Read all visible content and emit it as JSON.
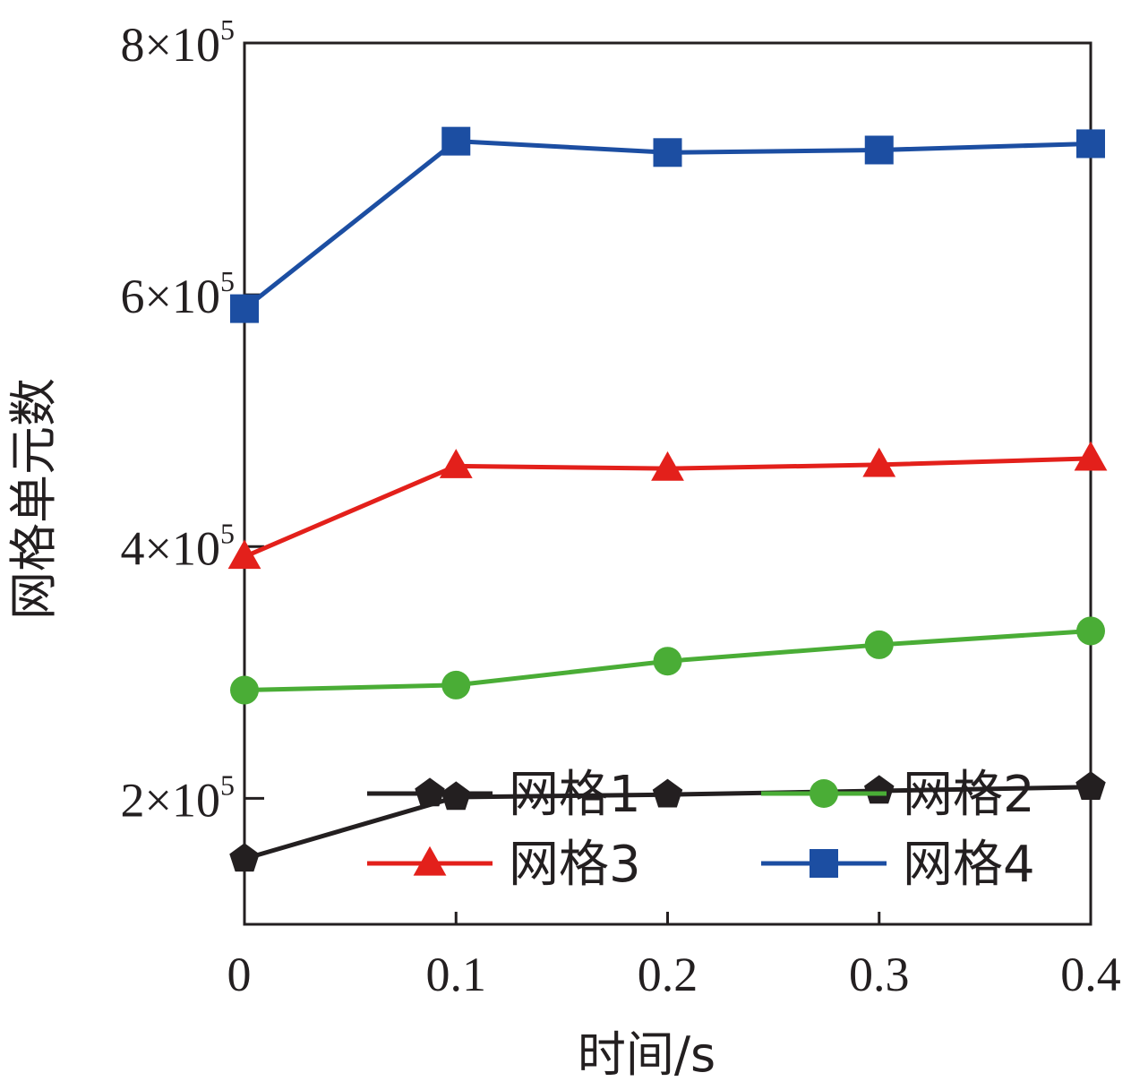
{
  "chart_data": {
    "type": "line",
    "xlabel": "时间/s",
    "ylabel": "网格单元数",
    "x": [
      0,
      0.1,
      0.2,
      0.3,
      0.4
    ],
    "x_tick_labels": [
      "0",
      "0.1",
      "0.2",
      "0.3",
      "0.4"
    ],
    "xlim": [
      0,
      0.4
    ],
    "ylim": [
      100000,
      800000
    ],
    "y_ticks": [
      {
        "value": 200000,
        "mantissa": "2",
        "times": "×10",
        "exponent": "5"
      },
      {
        "value": 400000,
        "mantissa": "4",
        "times": "×10",
        "exponent": "5"
      },
      {
        "value": 600000,
        "mantissa": "6",
        "times": "×10",
        "exponent": "5"
      },
      {
        "value": 800000,
        "mantissa": "8",
        "times": "×10",
        "exponent": "5"
      }
    ],
    "grid": false,
    "legend": {
      "placement": "bottom-right",
      "columns": 2
    },
    "series": [
      {
        "name": "网格1",
        "color": "#231f20",
        "marker": "pentagon",
        "values": [
          152000,
          201000,
          203000,
          206000,
          209000
        ]
      },
      {
        "name": "网格2",
        "color": "#4aad36",
        "marker": "circle",
        "values": [
          286000,
          290000,
          309000,
          322000,
          333000
        ]
      },
      {
        "name": "网格3",
        "color": "#e3201b",
        "marker": "triangle",
        "values": [
          392000,
          464000,
          462000,
          465000,
          470000
        ]
      },
      {
        "name": "网格4",
        "color": "#1c4ea2",
        "marker": "square",
        "values": [
          589000,
          722000,
          713000,
          715000,
          720000
        ]
      }
    ]
  }
}
